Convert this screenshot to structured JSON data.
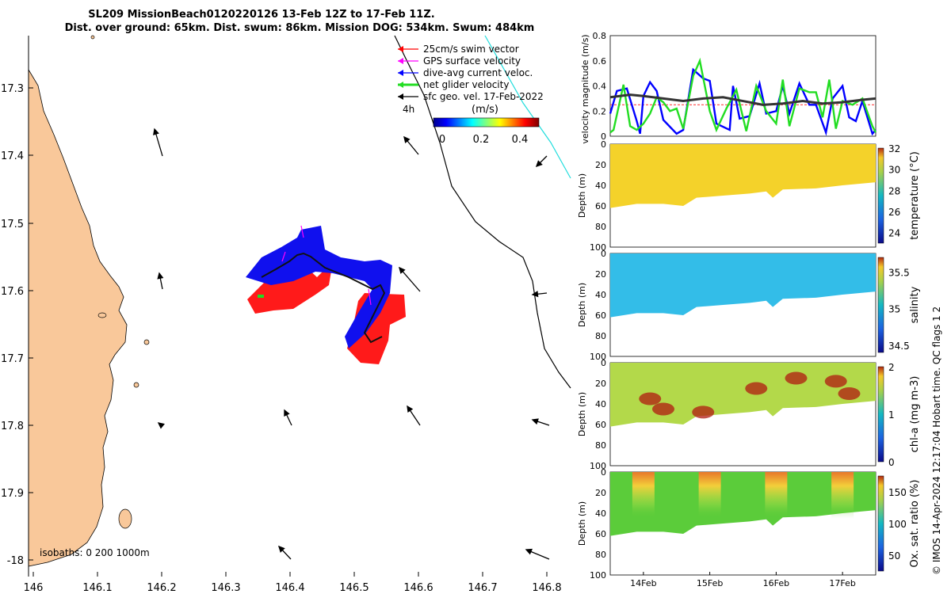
{
  "title": {
    "line1": "SL209 MissionBeach0120220126 13-Feb 12Z to 17-Feb 11Z.",
    "line2": "Dist. over ground: 65km. Dist. swum: 86km. Mission DOG: 534km. Swum: 484km"
  },
  "legend": {
    "items": [
      {
        "label": "25cm/s swim vector",
        "color": "#ff0000"
      },
      {
        "label": "GPS surface velocity",
        "color": "#ff00ff"
      },
      {
        "label": "dive-avg current veloc.",
        "color": "#0000ff"
      },
      {
        "label": "net glider velocity",
        "color": "#22dd22"
      },
      {
        "label": "sfc geo. vel. 17-Feb-2022",
        "color": "#000000"
      }
    ],
    "time_label": "4h"
  },
  "colorbar_speed": {
    "title": "(m/s)",
    "ticks": [
      "0",
      "0.2",
      "0.4"
    ]
  },
  "isobaths_label": "isobaths: 0   200  1000m",
  "map_axes": {
    "x_ticks": [
      "146",
      "146.1",
      "146.2",
      "146.3",
      "146.4",
      "146.5",
      "146.6",
      "146.7",
      "146.8"
    ],
    "y_ticks": [
      "17.3",
      "17.4",
      "17.5",
      "17.6",
      "17.7",
      "17.8",
      "17.9",
      "-18"
    ],
    "land_color": "#f9c89a"
  },
  "watermark": "© IMOS 14-Apr-2024 12:17:04 Hobart time. QC flags 1  2",
  "chart_data": [
    {
      "type": "line",
      "ylabel": "velocity magnitude (m/s)",
      "ylim": [
        0,
        0.8
      ],
      "y_ticks": [
        "0",
        "0.2",
        "0.4",
        "0.6",
        "0.8"
      ],
      "x_days": [
        13.5,
        17.5
      ],
      "series": [
        {
          "color": "#0000ff",
          "x": [
            13.5,
            13.6,
            13.75,
            13.9,
            13.95,
            14.0,
            14.1,
            14.2,
            14.3,
            14.5,
            14.6,
            14.75,
            14.9,
            15.0,
            15.1,
            15.3,
            15.35,
            15.45,
            15.6,
            15.75,
            15.85,
            16.0,
            16.1,
            16.2,
            16.35,
            16.5,
            16.6,
            16.75,
            16.85,
            17.0,
            17.1,
            17.2,
            17.3,
            17.45,
            17.5
          ],
          "y": [
            0.18,
            0.36,
            0.38,
            0.12,
            0.02,
            0.32,
            0.43,
            0.36,
            0.13,
            0.02,
            0.05,
            0.53,
            0.46,
            0.44,
            0.1,
            0.05,
            0.4,
            0.14,
            0.16,
            0.42,
            0.18,
            0.2,
            0.4,
            0.18,
            0.42,
            0.25,
            0.25,
            0.03,
            0.3,
            0.4,
            0.15,
            0.12,
            0.28,
            0.02,
            0.05
          ]
        },
        {
          "color": "#22dd22",
          "x": [
            13.5,
            13.55,
            13.7,
            13.8,
            13.9,
            14.0,
            14.1,
            14.2,
            14.3,
            14.4,
            14.5,
            14.6,
            14.75,
            14.85,
            15.0,
            15.1,
            15.25,
            15.4,
            15.55,
            15.7,
            15.85,
            16.0,
            16.1,
            16.2,
            16.35,
            16.5,
            16.6,
            16.7,
            16.8,
            16.9,
            17.0,
            17.15,
            17.3,
            17.45,
            17.5
          ],
          "y": [
            0.03,
            0.05,
            0.41,
            0.08,
            0.05,
            0.1,
            0.18,
            0.31,
            0.27,
            0.2,
            0.22,
            0.06,
            0.48,
            0.6,
            0.2,
            0.05,
            0.22,
            0.37,
            0.04,
            0.4,
            0.2,
            0.1,
            0.45,
            0.08,
            0.38,
            0.35,
            0.35,
            0.15,
            0.45,
            0.06,
            0.28,
            0.25,
            0.3,
            0.08,
            0.03
          ]
        },
        {
          "color": "#333333",
          "x": [
            13.5,
            13.8,
            14.0,
            14.3,
            14.6,
            14.9,
            15.2,
            15.5,
            15.8,
            16.1,
            16.4,
            16.7,
            17.0,
            17.3,
            17.5
          ],
          "y": [
            0.31,
            0.33,
            0.32,
            0.3,
            0.28,
            0.3,
            0.31,
            0.28,
            0.25,
            0.26,
            0.28,
            0.26,
            0.27,
            0.29,
            0.3
          ]
        }
      ],
      "reference_line": {
        "color": "#ff4444",
        "y": 0.25
      }
    },
    {
      "type": "heatmap",
      "ylabel": "Depth (m)",
      "clabel": "temperature (°C)",
      "y_ticks": [
        "0",
        "20",
        "40",
        "60",
        "80",
        "100"
      ],
      "c_ticks": [
        "32",
        "30",
        "28",
        "26",
        "24"
      ],
      "clim": [
        23,
        32
      ],
      "fill_color": "#f4d22a"
    },
    {
      "type": "heatmap",
      "ylabel": "Depth (m)",
      "clabel": "salinity",
      "y_ticks": [
        "0",
        "20",
        "40",
        "60",
        "80",
        "100"
      ],
      "c_ticks": [
        "35.5",
        "35",
        "34.5"
      ],
      "clim": [
        34.4,
        35.7
      ],
      "fill_color": "#33bde8"
    },
    {
      "type": "heatmap",
      "ylabel": "Depth (m)",
      "clabel": "chl-a (mg m-3)",
      "y_ticks": [
        "0",
        "20",
        "40",
        "60",
        "80",
        "100"
      ],
      "c_ticks": [
        "2",
        "1",
        "0"
      ],
      "clim": [
        0,
        2
      ],
      "fill_color": "#b3d94a"
    },
    {
      "type": "heatmap",
      "ylabel": "Depth (m)",
      "clabel": "Ox. sat. ratio (%)",
      "y_ticks": [
        "0",
        "20",
        "40",
        "60",
        "80",
        "100"
      ],
      "c_ticks": [
        "150",
        "100",
        "50"
      ],
      "clim": [
        25,
        175
      ],
      "fill_color": "#5bcc3a",
      "x_ticks": [
        "14Feb",
        "15Feb",
        "16Feb",
        "17Feb"
      ]
    }
  ]
}
